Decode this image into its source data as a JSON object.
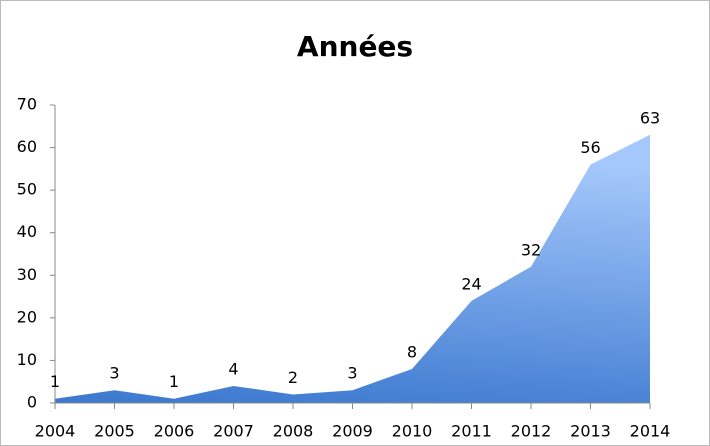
{
  "chart_data": {
    "type": "area",
    "title": "Années",
    "categories": [
      "2004",
      "2005",
      "2006",
      "2007",
      "2008",
      "2009",
      "2010",
      "2011",
      "2012",
      "2013",
      "2014"
    ],
    "values": [
      1,
      3,
      1,
      4,
      2,
      3,
      8,
      24,
      32,
      56,
      63
    ],
    "color": "#3d7bd0",
    "ylim": [
      0,
      70
    ],
    "yticks": [
      0,
      10,
      20,
      30,
      40,
      50,
      60,
      70
    ],
    "grid": false
  }
}
